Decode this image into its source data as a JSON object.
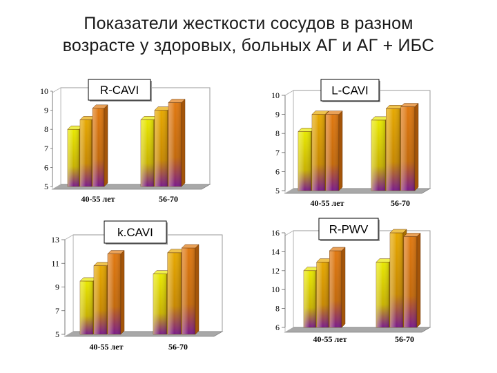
{
  "title": {
    "line1": "Показатели жесткости сосудов в разном",
    "line2": "возрасте у здоровых, больных АГ и АГ + ИБС"
  },
  "colors": {
    "group_1": "#e8e800",
    "group_2": "#e6a800",
    "group_3": "#e07810",
    "bar_base": "#7a1a8a"
  },
  "chart_data": [
    {
      "type": "bar",
      "title": "R-CAVI",
      "categories": [
        "40-55 лет",
        "56-70"
      ],
      "series": [
        {
          "values": [
            8.0,
            8.5
          ]
        },
        {
          "values": [
            8.5,
            9.0
          ]
        },
        {
          "values": [
            9.1,
            9.4
          ]
        }
      ],
      "yticks": [
        "5",
        "6",
        "7",
        "8",
        "9",
        "10"
      ],
      "ylim": [
        5,
        10
      ],
      "grid": false
    },
    {
      "type": "bar",
      "title": "L-CAVI",
      "categories": [
        "40-55 лет",
        "56-70"
      ],
      "series": [
        {
          "values": [
            8.1,
            8.7
          ]
        },
        {
          "values": [
            9.0,
            9.3
          ]
        },
        {
          "values": [
            9.0,
            9.4
          ]
        }
      ],
      "yticks": [
        "5",
        "6",
        "7",
        "8",
        "9",
        "10"
      ],
      "ylim": [
        5,
        10
      ],
      "grid": false
    },
    {
      "type": "bar",
      "title": "k.CAVI",
      "categories": [
        "40-55 лет",
        "56-70"
      ],
      "series": [
        {
          "values": [
            9.5,
            10.1
          ]
        },
        {
          "values": [
            10.8,
            11.9
          ]
        },
        {
          "values": [
            11.8,
            12.3
          ]
        }
      ],
      "yticks": [
        "5",
        "7",
        "9",
        "11",
        "13"
      ],
      "ylim": [
        5,
        13
      ],
      "grid": false
    },
    {
      "type": "bar",
      "title": "R-PWV",
      "categories": [
        "40-55 лет",
        "56-70"
      ],
      "series": [
        {
          "values": [
            12.0,
            12.9
          ]
        },
        {
          "values": [
            12.9,
            16.0
          ]
        },
        {
          "values": [
            14.1,
            15.6
          ]
        }
      ],
      "yticks": [
        "6",
        "8",
        "10",
        "12",
        "14",
        "16"
      ],
      "ylim": [
        6,
        16
      ],
      "grid": false
    }
  ]
}
